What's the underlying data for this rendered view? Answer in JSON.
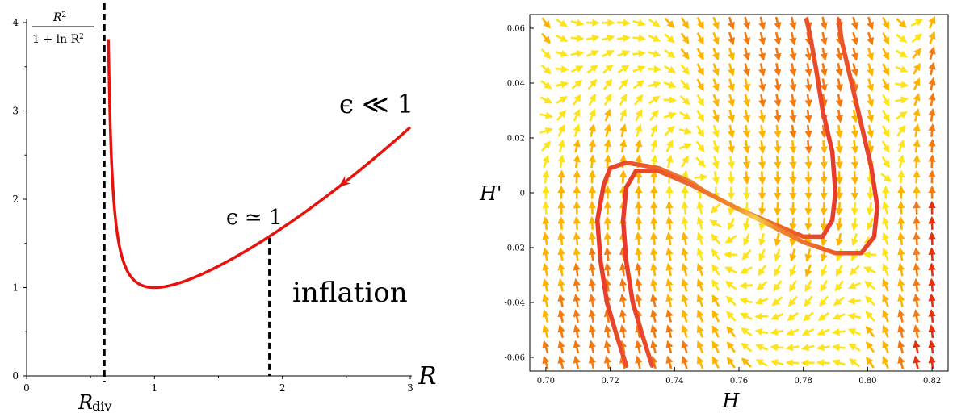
{
  "chart_data": [
    {
      "type": "line",
      "xlabel": "R",
      "ylabel": "",
      "xlim": [
        0,
        3
      ],
      "ylim": [
        0,
        4
      ],
      "x_ticks": [
        "0",
        "1",
        "2",
        "3"
      ],
      "y_ticks": [
        "0",
        "1",
        "2",
        "3",
        "4"
      ],
      "curve_formula": "R^2 / (1 + ln R^2)",
      "curve_label": {
        "numerator": "R",
        "num_sup": "2",
        "denominator": "1 + ln R",
        "den_sup": "2"
      },
      "curve_color": "#e8120c",
      "R_div": 0.6065,
      "R_div_label": {
        "main": "R",
        "sub": "div"
      },
      "epsilon_one_R": 1.9,
      "annotations": {
        "eps_small": "ϵ ≪ 1",
        "eps_one": "ϵ ≃ 1",
        "inflation": "inflation"
      },
      "arrow_at_R": 2.52
    },
    {
      "type": "vector_field",
      "xlabel": "H",
      "ylabel": "H'",
      "xlim": [
        0.695,
        0.825
      ],
      "ylim": [
        -0.065,
        0.065
      ],
      "x_ticks": [
        "0.70",
        "0.72",
        "0.74",
        "0.76",
        "0.78",
        "0.80",
        "0.82"
      ],
      "y_ticks": [
        "-0.06",
        "-0.04",
        "-0.02",
        "0",
        "0.02",
        "0.04",
        "0.06"
      ],
      "fixed_point": [
        0.75,
        0
      ],
      "arrow_colors": [
        "#ffe31a",
        "#ffb400",
        "#f47a10",
        "#e5300d"
      ],
      "trajectories": [
        [
          [
            0.725,
            -0.063
          ],
          [
            0.722,
            -0.052
          ],
          [
            0.719,
            -0.04
          ],
          [
            0.717,
            -0.025
          ],
          [
            0.716,
            -0.01
          ],
          [
            0.718,
            0.003
          ],
          [
            0.72,
            0.009
          ],
          [
            0.725,
            0.011
          ],
          [
            0.735,
            0.009
          ],
          [
            0.745,
            0.004
          ],
          [
            0.75,
            0.0
          ],
          [
            0.76,
            -0.006
          ],
          [
            0.77,
            -0.011
          ],
          [
            0.78,
            -0.016
          ],
          [
            0.786,
            -0.016
          ],
          [
            0.789,
            -0.01
          ],
          [
            0.79,
            0.0
          ],
          [
            0.789,
            0.015
          ],
          [
            0.786,
            0.03
          ],
          [
            0.784,
            0.045
          ],
          [
            0.782,
            0.058
          ],
          [
            0.781,
            0.063
          ]
        ],
        [
          [
            0.733,
            -0.063
          ],
          [
            0.73,
            -0.052
          ],
          [
            0.727,
            -0.04
          ],
          [
            0.725,
            -0.025
          ],
          [
            0.724,
            -0.01
          ],
          [
            0.725,
            0.002
          ],
          [
            0.728,
            0.008
          ],
          [
            0.735,
            0.008
          ],
          [
            0.745,
            0.003
          ],
          [
            0.75,
            0.0
          ],
          [
            0.76,
            -0.006
          ],
          [
            0.77,
            -0.012
          ],
          [
            0.78,
            -0.018
          ],
          [
            0.79,
            -0.022
          ],
          [
            0.798,
            -0.022
          ],
          [
            0.802,
            -0.016
          ],
          [
            0.803,
            -0.005
          ],
          [
            0.801,
            0.01
          ],
          [
            0.798,
            0.025
          ],
          [
            0.795,
            0.04
          ],
          [
            0.792,
            0.055
          ],
          [
            0.791,
            0.063
          ]
        ]
      ],
      "trajectory_colors": [
        "#e83a2a",
        "#f08a2c",
        "#f6d14a"
      ]
    }
  ]
}
